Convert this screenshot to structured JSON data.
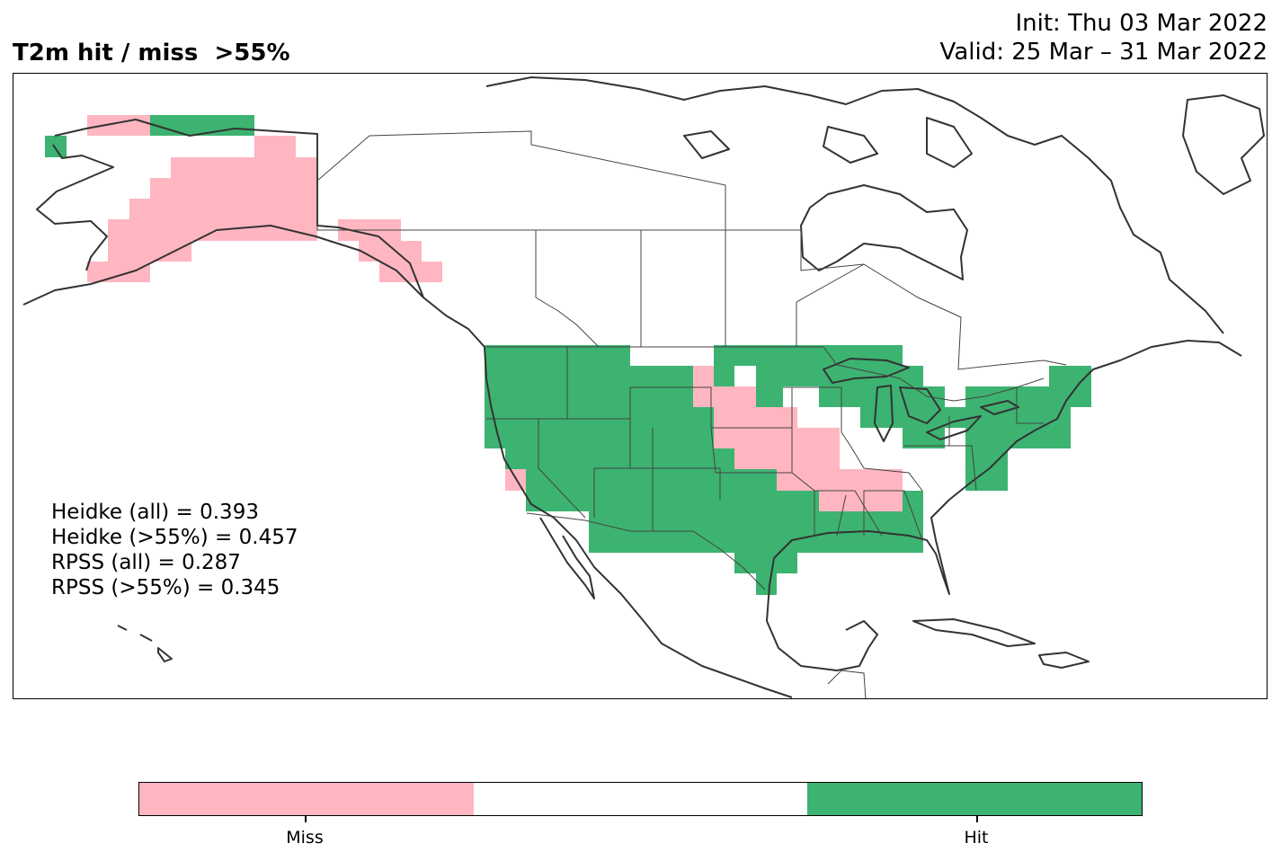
{
  "title": "T2m hit / miss  >55%",
  "init_text": "Init: Thu 03 Mar 2022",
  "valid_text": "Valid: 25 Mar – 31 Mar 2022",
  "stats": {
    "heidke_all": "Heidke (all) = 0.393",
    "heidke_55": "Heidke (>55%) = 0.457",
    "rpss_all": "RPSS (all) = 0.287",
    "rpss_55": "RPSS (>55%) = 0.345"
  },
  "colors": {
    "miss": "#ffb6c1",
    "neutral": "#ffffff",
    "hit": "#3cb371",
    "outline": "#333333"
  },
  "legend": {
    "miss_label": "Miss",
    "hit_label": "Hit"
  }
}
